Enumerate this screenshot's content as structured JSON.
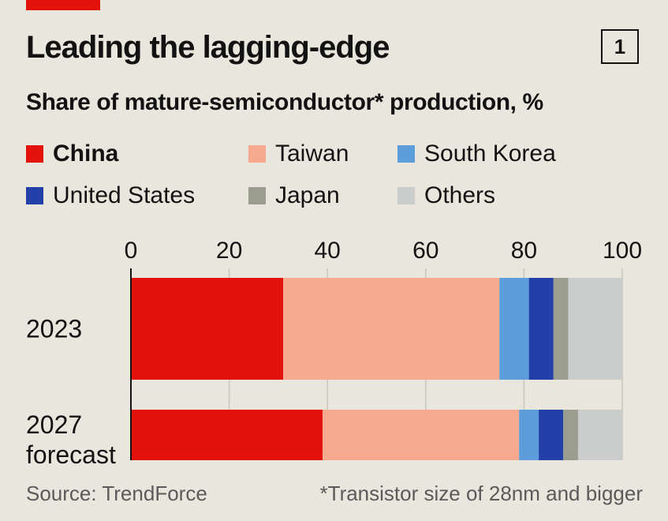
{
  "header": {
    "title": "Leading the lagging-edge",
    "chart_number": "1",
    "subtitle": "Share of mature-semiconductor* production, %"
  },
  "footer": {
    "source": "Source: TrendForce",
    "footnote": "*Transistor size of 28nm and bigger"
  },
  "chart_data": {
    "type": "bar",
    "orientation": "horizontal",
    "stacked": true,
    "title": "Leading the lagging-edge",
    "subtitle": "Share of mature-semiconductor* production, %",
    "categories": [
      "2023",
      "2027 forecast"
    ],
    "category_lines": [
      [
        "2023"
      ],
      [
        "2027",
        "forecast"
      ]
    ],
    "series": [
      {
        "name": "China",
        "color": "#e3120b",
        "values": [
          31,
          39
        ]
      },
      {
        "name": "Taiwan",
        "color": "#f7a98e",
        "values": [
          44,
          40
        ]
      },
      {
        "name": "South Korea",
        "color": "#5e9ddb",
        "values": [
          6,
          4
        ]
      },
      {
        "name": "United States",
        "color": "#2240a8",
        "values": [
          5,
          5
        ]
      },
      {
        "name": "Japan",
        "color": "#9b9d8e",
        "values": [
          3,
          3
        ]
      },
      {
        "name": "Others",
        "color": "#cbcdcd",
        "values": [
          11,
          9
        ]
      }
    ],
    "xlim": [
      0,
      100
    ],
    "xticks": [
      0,
      20,
      40,
      60,
      80,
      100
    ],
    "xlabel": "",
    "ylabel": "",
    "grid": true,
    "legend_position": "top"
  }
}
